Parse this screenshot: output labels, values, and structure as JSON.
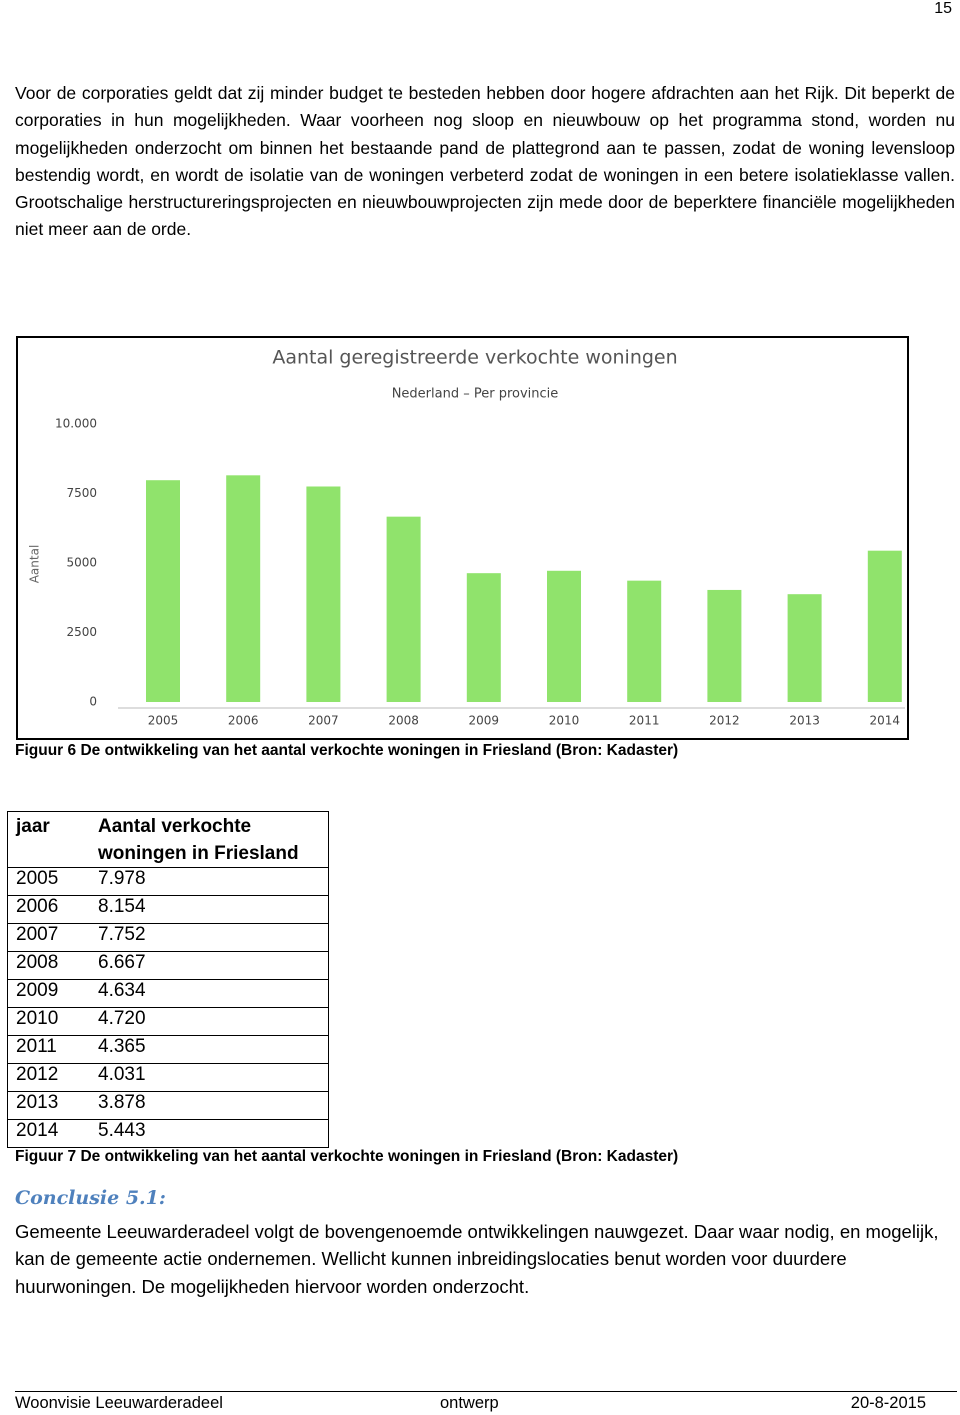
{
  "page_number": "15",
  "paragraph": "Voor de corporaties geldt dat zij minder budget te besteden hebben door hogere afdrachten aan het Rijk. Dit beperkt de corporaties in hun mogelijkheden. Waar voorheen nog sloop en nieuwbouw op het programma stond, worden nu mogelijkheden onderzocht om binnen het bestaande pand de plattegrond aan te passen, zodat de woning levensloop bestendig wordt, en wordt de isolatie van de woningen verbeterd zodat de woningen in een betere isolatieklasse vallen. Grootschalige herstructureringsprojecten en nieuwbouwprojecten zijn mede door de beperktere financiële mogelijkheden niet meer aan de orde.",
  "chart_data": {
    "type": "bar",
    "title": "Aantal geregistreerde verkochte woningen",
    "subtitle": "Nederland – Per provincie",
    "y_label": "Aantal",
    "categories": [
      "2005",
      "2006",
      "2007",
      "2008",
      "2009",
      "2010",
      "2011",
      "2012",
      "2013",
      "2014"
    ],
    "values": [
      7978,
      8154,
      7752,
      6667,
      4634,
      4720,
      4365,
      4031,
      3878,
      5443
    ],
    "color": "#90e36c",
    "ylim": [
      0,
      10000
    ],
    "yticks": [
      0,
      2500,
      5000,
      7500,
      {
        "value": 10000,
        "label": "10.000"
      }
    ],
    "grid": false
  },
  "figure6_caption": "Figuur 6 De ontwikkeling van het aantal verkochte woningen in Friesland (Bron: Kadaster)",
  "table": {
    "header": [
      "jaar",
      "Aantal verkochte woningen in Friesland"
    ],
    "rows": [
      [
        "2005",
        "7.978"
      ],
      [
        "2006",
        "8.154"
      ],
      [
        "2007",
        "7.752"
      ],
      [
        "2008",
        "6.667"
      ],
      [
        "2009",
        "4.634"
      ],
      [
        "2010",
        "4.720"
      ],
      [
        "2011",
        "4.365"
      ],
      [
        "2012",
        "4.031"
      ],
      [
        "2013",
        "3.878"
      ],
      [
        "2014",
        "5.443"
      ]
    ]
  },
  "figure7_caption": "Figuur 7 De ontwikkeling van het aantal verkochte woningen in Friesland (Bron: Kadaster)",
  "conclusion": {
    "heading": "Conclusie 5.1:",
    "text": "Gemeente Leeuwarderadeel volgt de bovengenoemde ontwikkelingen nauwgezet. Daar waar nodig, en mogelijk, kan de gemeente actie ondernemen. Wellicht kunnen inbreidingslocaties benut worden voor duurdere huurwoningen. De mogelijkheden hiervoor worden onderzocht."
  },
  "footer": {
    "left": "Woonvisie Leeuwarderadeel",
    "center": "ontwerp",
    "right": "20-8-2015"
  }
}
